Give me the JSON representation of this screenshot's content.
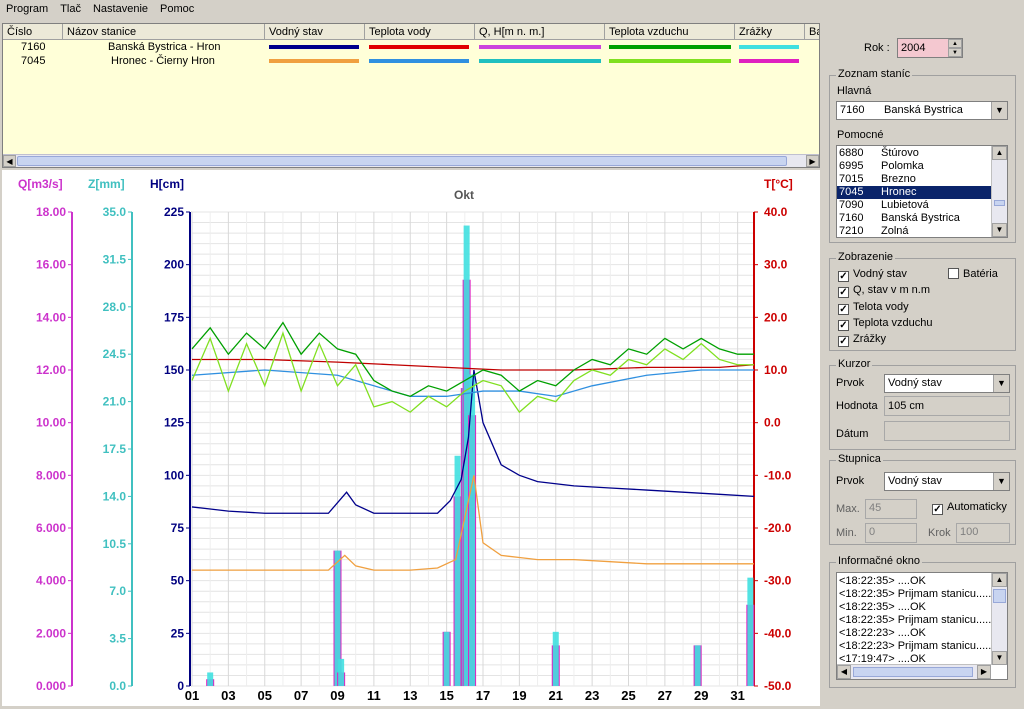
{
  "menu": [
    "Program",
    "Tlač",
    "Nastavenie",
    "Pomoc"
  ],
  "table": {
    "headers": [
      "Číslo",
      "Názov stanice",
      "Vodný stav",
      "Teplota vody",
      "Q, H[m n. m.]",
      "Teplota vzduchu",
      "Zrážky",
      "Ba"
    ],
    "rows": [
      {
        "code": "7160",
        "name": "Banská Bystrica - Hron",
        "colors": [
          "#00008b",
          "#e00000",
          "#cc44dd",
          "#00a000",
          "#40e0e0"
        ]
      },
      {
        "code": "7045",
        "name": "Hronec - Čierny Hron",
        "colors": [
          "#f0a040",
          "#3090e0",
          "#20c0c0",
          "#80e020",
          "#e020c0"
        ]
      }
    ]
  },
  "chart": {
    "month_title": "Okt",
    "axes": [
      {
        "label": "Q[m3/s]",
        "color": "#cc33cc",
        "ticks": [
          "18.00",
          "16.00",
          "14.00",
          "12.00",
          "10.00",
          "8.000",
          "6.000",
          "4.000",
          "2.000",
          "0.000"
        ]
      },
      {
        "label": "Z[mm]",
        "color": "#40c0c0",
        "ticks": [
          "35.0",
          "31.5",
          "28.0",
          "24.5",
          "21.0",
          "17.5",
          "14.0",
          "10.5",
          "7.0",
          "3.5",
          "0.0"
        ]
      },
      {
        "label": "H[cm]",
        "color": "#000080",
        "ticks": [
          "225",
          "200",
          "175",
          "150",
          "125",
          "100",
          "75",
          "50",
          "25",
          "0"
        ]
      },
      {
        "label": "T[°C]",
        "color": "#cc0000",
        "ticks": [
          "40.0",
          "30.0",
          "20.0",
          "10.0",
          "0.0",
          "-10.0",
          "-20.0",
          "-30.0",
          "-40.0",
          "-50.0"
        ]
      }
    ],
    "x_labels": [
      "01",
      "03",
      "05",
      "07",
      "09",
      "11",
      "13",
      "15",
      "17",
      "19",
      "21",
      "23",
      "25",
      "27",
      "29",
      "31"
    ]
  },
  "chart_data": {
    "type": "line",
    "title": "Okt",
    "x_range": [
      1,
      31.9
    ],
    "ylabel_left": "H[cm]",
    "ylabel_right": "T[°C]",
    "ylim_H": [
      0,
      225
    ],
    "ylim_T": [
      -50,
      40
    ],
    "series": [
      {
        "name": "Vodný stav",
        "axis": "H",
        "color": "#00008b",
        "x": [
          1,
          2,
          3,
          5,
          7,
          8.5,
          9.5,
          10,
          11,
          13,
          14.5,
          15.2,
          15.8,
          16.2,
          16.5,
          17,
          18,
          19,
          20,
          22,
          24,
          26,
          28,
          30,
          31.9
        ],
        "y": [
          85,
          84,
          83,
          82,
          82,
          82,
          92,
          86,
          82,
          82,
          82,
          88,
          98,
          118,
          150,
          125,
          105,
          100,
          97,
          95,
          94,
          93,
          92,
          91,
          90
        ]
      },
      {
        "name": "Vodný stav 7045",
        "axis": "H",
        "color": "#f0a040",
        "x": [
          1,
          3,
          5,
          7,
          8.5,
          9.4,
          10,
          11,
          13,
          14.5,
          15.5,
          16,
          16.5,
          17,
          18,
          19,
          20,
          22,
          24,
          26,
          28,
          30,
          31.9
        ],
        "y": [
          55,
          55,
          55,
          55,
          55,
          62,
          57,
          55,
          55,
          56,
          60,
          80,
          100,
          68,
          62,
          61,
          60,
          60,
          59,
          58,
          58,
          58,
          58
        ]
      },
      {
        "name": "Teplota vody",
        "axis": "T",
        "color": "#c00000",
        "x": [
          1,
          5,
          9,
          12,
          15,
          18,
          22,
          26,
          30,
          31.9
        ],
        "y": [
          12,
          12,
          11.5,
          11,
          10.5,
          10,
          10,
          10.5,
          10.5,
          11
        ]
      },
      {
        "name": "Teplota vody 7045",
        "axis": "T",
        "color": "#3090e0",
        "x": [
          1,
          5,
          9,
          11,
          13,
          15,
          17,
          19,
          21,
          23,
          26,
          29,
          31.9
        ],
        "y": [
          9,
          10,
          9,
          7,
          5,
          5,
          6,
          6,
          5,
          7,
          9,
          10,
          10
        ]
      },
      {
        "name": "Teplota vzduchu",
        "axis": "T",
        "color": "#00a000",
        "x": [
          1,
          2,
          3,
          4,
          5,
          6,
          7,
          8,
          9,
          10,
          11,
          12,
          13,
          14,
          15,
          16,
          17,
          18,
          19,
          20,
          21,
          22,
          23,
          24,
          25,
          26,
          27,
          28,
          29,
          30,
          31,
          31.9
        ],
        "y": [
          14,
          18,
          13,
          17,
          14,
          19,
          13,
          17,
          14,
          13,
          8,
          6,
          5,
          7,
          6,
          8,
          10,
          9,
          6,
          8,
          7,
          10,
          12,
          11,
          14,
          13,
          16,
          14,
          16,
          14,
          13,
          13
        ]
      },
      {
        "name": "Teplota vzduchu 7045",
        "axis": "T",
        "color": "#80e020",
        "x": [
          1,
          2,
          3,
          4,
          5,
          6,
          7,
          8,
          9,
          10,
          11,
          12,
          13,
          14,
          15,
          16,
          17,
          18,
          19,
          20,
          21,
          22,
          23,
          24,
          25,
          26,
          27,
          28,
          29,
          30,
          31,
          31.9
        ],
        "y": [
          8,
          16,
          6,
          15,
          7,
          17,
          6,
          15,
          7,
          11,
          3,
          4,
          2,
          5,
          3,
          6,
          8,
          7,
          2,
          5,
          4,
          8,
          10,
          9,
          12,
          11,
          14,
          12,
          15,
          12,
          11,
          11
        ]
      }
    ],
    "bars": {
      "axis": "Z",
      "ylim": [
        0,
        35
      ],
      "x": [
        2,
        9,
        9.2,
        15,
        15.6,
        16,
        16.1,
        16.4,
        21,
        28.8,
        31.7
      ],
      "zrazky_7160": [
        1,
        10,
        2,
        4,
        17,
        22,
        34,
        23,
        4,
        3,
        8
      ],
      "zrazky_7045": [
        0.5,
        10,
        1,
        4,
        14,
        22,
        30,
        20,
        3,
        3,
        6
      ]
    }
  },
  "right": {
    "rok_label": "Rok :",
    "rok_value": "2004",
    "zoznam_title": "Zoznam staníc",
    "hlavna_label": "Hlavná",
    "hlavna_code": "7160",
    "hlavna_name": "Banská Bystrica",
    "pomocne_label": "Pomocné",
    "stations": [
      {
        "code": "6880",
        "name": "Štúrovo"
      },
      {
        "code": "6995",
        "name": "Polomka"
      },
      {
        "code": "7015",
        "name": "Brezno"
      },
      {
        "code": "7045",
        "name": "Hronec"
      },
      {
        "code": "7090",
        "name": "Lubietová"
      },
      {
        "code": "7160",
        "name": "Banská Bystrica"
      },
      {
        "code": "7210",
        "name": "Zolná"
      }
    ],
    "zobrazenie_title": "Zobrazenie",
    "checks": [
      {
        "label": "Vodný stav",
        "checked": "✓"
      },
      {
        "label": "Q, stav v m n.m",
        "checked": "✓"
      },
      {
        "label": "Telota vody",
        "checked": "✓"
      },
      {
        "label": "Teplota vzduchu",
        "checked": "✓"
      },
      {
        "label": "Zrážky",
        "checked": "✓"
      }
    ],
    "bateria_label": "Batéria",
    "kurzor_title": "Kurzor",
    "prvok_label": "Prvok",
    "prvok_value": "Vodný stav",
    "hodnota_label": "Hodnota",
    "hodnota_value": "105 cm",
    "datum_label": "Dátum",
    "stupnica_title": "Stupnica",
    "stupnica_prvok_value": "Vodný stav",
    "max_label": "Max.",
    "max_value": "45",
    "automaticky_label": "Automaticky",
    "min_label": "Min.",
    "min_value": "0",
    "krok_label": "Krok",
    "krok_value": "100",
    "info_title": "Informačné okno",
    "info_lines": [
      "<18:22:35> ....OK",
      "<18:22:35> Prijmam stanicu.....",
      "<18:22:35> ....OK",
      "<18:22:35> Prijmam stanicu.....",
      "<18:22:23> ....OK",
      "<18:22:23> Prijmam stanicu.....",
      "<17:19:47> ....OK"
    ]
  }
}
